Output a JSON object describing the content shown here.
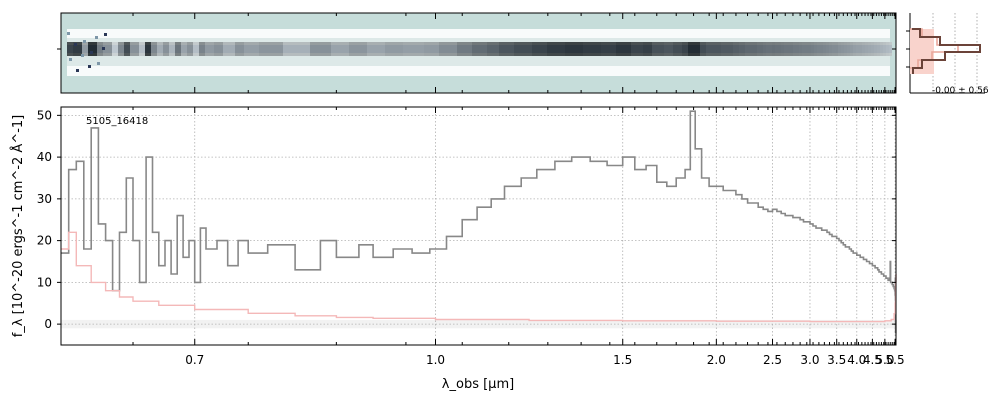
{
  "chart_data": [
    {
      "type": "heatmap",
      "description": "2D spectrum image"
    },
    {
      "type": "line",
      "title": "",
      "annotation": "-0.00 ± 0.56",
      "x_ticks": []
    },
    {
      "type": "line",
      "label": "5105_16418",
      "xlabel": "λ_obs [μm]",
      "ylabel": "f_λ [10^-20 ergs^-1 cm^-2 Å^-1]",
      "xlim": [
        0.6,
        5.55
      ],
      "ylim": [
        -5,
        52
      ],
      "x_scale": "reciprocal",
      "x_ticks": [
        0.7,
        1.0,
        1.5,
        2.0,
        2.5,
        3.0,
        3.5,
        4.0,
        4.5,
        5.0,
        5.5
      ],
      "x_tick_labels": [
        "0.7",
        "1.0",
        "1.5",
        "2.0",
        "2.5",
        "3.0",
        "3.5",
        "4.0",
        "4.5",
        "5.0",
        "5.5"
      ],
      "y_ticks": [
        0,
        10,
        20,
        30,
        40,
        50
      ],
      "y_tick_labels": [
        "0",
        "10",
        "20",
        "30",
        "40",
        "50"
      ],
      "grid": true,
      "series": [
        {
          "color": "#888888",
          "step": true,
          "points": [
            [
              0.6,
              17
            ],
            [
              0.605,
              37
            ],
            [
              0.61,
              39
            ],
            [
              0.615,
              18
            ],
            [
              0.62,
              47
            ],
            [
              0.625,
              24
            ],
            [
              0.63,
              20
            ],
            [
              0.635,
              8
            ],
            [
              0.64,
              22
            ],
            [
              0.645,
              35
            ],
            [
              0.65,
              20
            ],
            [
              0.655,
              10
            ],
            [
              0.66,
              40
            ],
            [
              0.665,
              22
            ],
            [
              0.67,
              14
            ],
            [
              0.675,
              20
            ],
            [
              0.68,
              12
            ],
            [
              0.685,
              26
            ],
            [
              0.69,
              16
            ],
            [
              0.695,
              20
            ],
            [
              0.7,
              10
            ],
            [
              0.705,
              23
            ],
            [
              0.71,
              18
            ],
            [
              0.72,
              20
            ],
            [
              0.73,
              14
            ],
            [
              0.74,
              20
            ],
            [
              0.75,
              17
            ],
            [
              0.77,
              19
            ],
            [
              0.8,
              13
            ],
            [
              0.83,
              20
            ],
            [
              0.85,
              16
            ],
            [
              0.88,
              19
            ],
            [
              0.9,
              16
            ],
            [
              0.93,
              18
            ],
            [
              0.96,
              17
            ],
            [
              0.99,
              18
            ],
            [
              1.02,
              21
            ],
            [
              1.05,
              25
            ],
            [
              1.08,
              28
            ],
            [
              1.11,
              30
            ],
            [
              1.14,
              33
            ],
            [
              1.18,
              35
            ],
            [
              1.22,
              37
            ],
            [
              1.27,
              39
            ],
            [
              1.32,
              40
            ],
            [
              1.38,
              39
            ],
            [
              1.44,
              38
            ],
            [
              1.5,
              40
            ],
            [
              1.55,
              37
            ],
            [
              1.6,
              38
            ],
            [
              1.65,
              34
            ],
            [
              1.7,
              33
            ],
            [
              1.75,
              35
            ],
            [
              1.8,
              37
            ],
            [
              1.83,
              51
            ],
            [
              1.86,
              42
            ],
            [
              1.9,
              35
            ],
            [
              1.95,
              33
            ],
            [
              2.0,
              33
            ],
            [
              2.05,
              32
            ],
            [
              2.1,
              32
            ],
            [
              2.15,
              31
            ],
            [
              2.2,
              30
            ],
            [
              2.25,
              29
            ],
            [
              2.3,
              29
            ],
            [
              2.35,
              28
            ],
            [
              2.4,
              27.5
            ],
            [
              2.45,
              27
            ],
            [
              2.5,
              27.5
            ],
            [
              2.55,
              27
            ],
            [
              2.6,
              26.5
            ],
            [
              2.65,
              26
            ],
            [
              2.7,
              26
            ],
            [
              2.75,
              25.5
            ],
            [
              2.8,
              25.5
            ],
            [
              2.85,
              25
            ],
            [
              2.9,
              24.5
            ],
            [
              2.95,
              24.5
            ],
            [
              3.0,
              24
            ],
            [
              3.05,
              23.5
            ],
            [
              3.1,
              23
            ],
            [
              3.15,
              23
            ],
            [
              3.2,
              22.5
            ],
            [
              3.25,
              22.5
            ],
            [
              3.3,
              22
            ],
            [
              3.35,
              21.5
            ],
            [
              3.4,
              21
            ],
            [
              3.45,
              21
            ],
            [
              3.5,
              20.5
            ],
            [
              3.55,
              20
            ],
            [
              3.6,
              19.5
            ],
            [
              3.65,
              19
            ],
            [
              3.7,
              18.5
            ],
            [
              3.75,
              18.5
            ],
            [
              3.8,
              18
            ],
            [
              3.85,
              17.5
            ],
            [
              3.9,
              17
            ],
            [
              3.95,
              17
            ],
            [
              4.0,
              16.5
            ],
            [
              4.05,
              16.5
            ],
            [
              4.1,
              16
            ],
            [
              4.15,
              16
            ],
            [
              4.2,
              15.5
            ],
            [
              4.25,
              15.5
            ],
            [
              4.3,
              15
            ],
            [
              4.35,
              15
            ],
            [
              4.4,
              14.5
            ],
            [
              4.45,
              14.5
            ],
            [
              4.5,
              14
            ],
            [
              4.55,
              14
            ],
            [
              4.6,
              13.5
            ],
            [
              4.65,
              13.5
            ],
            [
              4.7,
              13
            ],
            [
              4.75,
              12.5
            ],
            [
              4.8,
              12.5
            ],
            [
              4.85,
              12
            ],
            [
              4.9,
              12
            ],
            [
              4.95,
              11.5
            ],
            [
              5.0,
              11.5
            ],
            [
              5.05,
              11
            ],
            [
              5.1,
              11
            ],
            [
              5.15,
              10.5
            ],
            [
              5.2,
              10.5
            ],
            [
              5.23,
              11
            ],
            [
              5.25,
              15
            ],
            [
              5.27,
              10
            ],
            [
              5.3,
              10
            ],
            [
              5.35,
              9.5
            ],
            [
              5.4,
              9
            ],
            [
              5.45,
              8.5
            ],
            [
              5.48,
              8
            ],
            [
              5.5,
              7
            ],
            [
              5.51,
              11
            ],
            [
              5.52,
              6
            ],
            [
              5.53,
              -2
            ],
            [
              5.54,
              1
            ]
          ]
        },
        {
          "color": "#f4b8b8",
          "step": true,
          "points": [
            [
              0.6,
              18
            ],
            [
              0.605,
              22
            ],
            [
              0.61,
              14
            ],
            [
              0.62,
              10
            ],
            [
              0.63,
              8
            ],
            [
              0.64,
              6.5
            ],
            [
              0.65,
              5.5
            ],
            [
              0.67,
              4.5
            ],
            [
              0.7,
              3.5
            ],
            [
              0.75,
              2.6
            ],
            [
              0.8,
              2.0
            ],
            [
              0.85,
              1.6
            ],
            [
              0.9,
              1.4
            ],
            [
              1.0,
              1.1
            ],
            [
              1.2,
              0.9
            ],
            [
              1.5,
              0.8
            ],
            [
              2.0,
              0.7
            ],
            [
              3.0,
              0.6
            ],
            [
              4.0,
              0.6
            ],
            [
              5.0,
              0.8
            ],
            [
              5.3,
              1.1
            ],
            [
              5.45,
              2.5
            ],
            [
              5.5,
              5
            ],
            [
              5.53,
              10
            ],
            [
              5.55,
              12
            ]
          ]
        }
      ]
    }
  ],
  "colors": {
    "spec": "#888888",
    "err": "#f4b8b8",
    "image_bg": "#c6ddda",
    "grid": "#b0b0b0"
  }
}
